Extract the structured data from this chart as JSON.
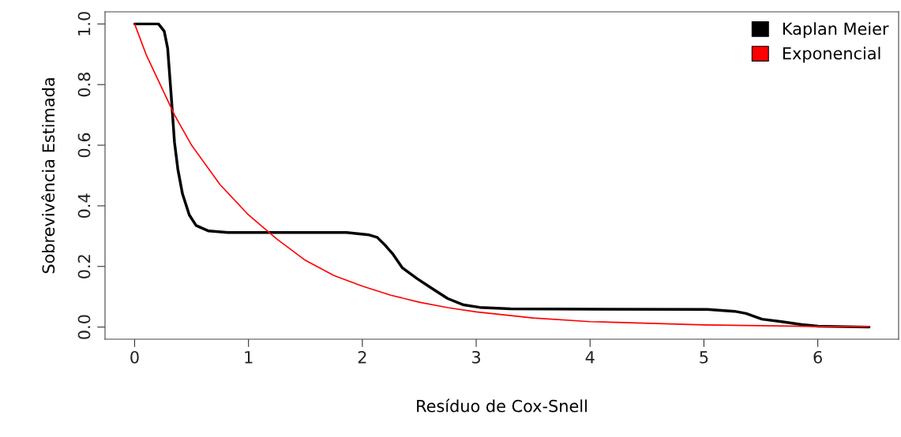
{
  "chart_data": {
    "type": "line",
    "xlabel": "Resíduo de Cox-Snell",
    "ylabel": "Sobrevivência Estimada",
    "xlim": [
      -0.26,
      6.71
    ],
    "ylim": [
      -0.04,
      1.04
    ],
    "xticks": [
      0,
      1,
      2,
      3,
      4,
      5,
      6
    ],
    "yticks": [
      {
        "value": 0,
        "label": "0.0"
      },
      {
        "value": 0.2,
        "label": "0.2"
      },
      {
        "value": 0.4,
        "label": "0.4"
      },
      {
        "value": 0.6,
        "label": "0.6"
      },
      {
        "value": 0.8,
        "label": "0.8"
      },
      {
        "value": 1,
        "label": "1.0"
      }
    ],
    "grid": false,
    "legend": "top right",
    "marker": "none",
    "line_style": "solid",
    "series": [
      {
        "name": "Kaplan Meier",
        "color": "#000000",
        "x": [
          0,
          0.21,
          0.26,
          0.29,
          0.32,
          0.35,
          0.38,
          0.42,
          0.48,
          0.54,
          0.65,
          0.82,
          1.86,
          2.06,
          2.13,
          2.2,
          2.27,
          2.35,
          2.48,
          2.61,
          2.75,
          2.89,
          3.03,
          3.3,
          5.03,
          5.27,
          5.37,
          5.51,
          5.68,
          5.86,
          6.0,
          6.45
        ],
        "values": [
          1.0,
          1.0,
          0.976,
          0.92,
          0.77,
          0.61,
          0.52,
          0.44,
          0.37,
          0.335,
          0.317,
          0.312,
          0.312,
          0.304,
          0.296,
          0.27,
          0.24,
          0.196,
          0.16,
          0.128,
          0.094,
          0.073,
          0.065,
          0.06,
          0.058,
          0.052,
          0.045,
          0.026,
          0.018,
          0.008,
          0.003,
          0.0
        ]
      },
      {
        "name": "Exponencial",
        "color": "#ff0000",
        "x": [
          0,
          0.1,
          0.25,
          0.35,
          0.5,
          0.75,
          1,
          1.25,
          1.5,
          1.75,
          2,
          2.25,
          2.5,
          2.75,
          3,
          3.5,
          4,
          5,
          6,
          6.45
        ],
        "values": [
          1.0,
          0.9,
          0.78,
          0.7,
          0.6,
          0.47,
          0.37,
          0.29,
          0.22,
          0.17,
          0.135,
          0.105,
          0.082,
          0.064,
          0.05,
          0.03,
          0.018,
          0.007,
          0.002,
          0.002
        ]
      }
    ]
  }
}
